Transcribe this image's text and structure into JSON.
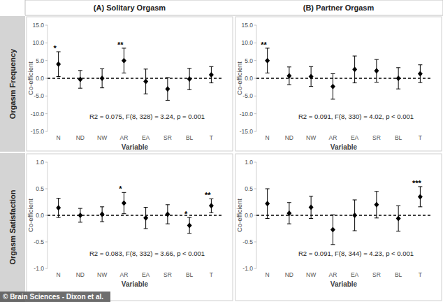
{
  "column_headers": [
    "(A) Solitary Orgasm",
    "(B) Partner Orgasm"
  ],
  "row_labels": [
    "Orgasm Frequency",
    "Orgasm Satisfaction"
  ],
  "credit": "© Brain Sciences - Dixon et al.",
  "chart_data": [
    {
      "type": "scatter",
      "marker": "diamond",
      "color": "#000000",
      "x_label": "Variable",
      "y_label": "Co-efficient",
      "categories": [
        "N",
        "ND",
        "NW",
        "AR",
        "EA",
        "SR",
        "BL",
        "T"
      ],
      "values": [
        4.0,
        -0.3,
        0.0,
        5.0,
        -0.9,
        -3.0,
        -0.2,
        1.0
      ],
      "errors": [
        3.5,
        2.5,
        2.7,
        3.5,
        3.5,
        3.2,
        3.0,
        2.3
      ],
      "significance": [
        "*",
        null,
        null,
        "**",
        null,
        null,
        null,
        null
      ],
      "annotation": "R2 = 0.075, F(8, 328) = 3.24, p = 0.001",
      "reference_line": 0,
      "ylim": [
        -15,
        15
      ],
      "yticks": [
        {
          "value": -15,
          "label": "-15.0"
        },
        {
          "value": -10,
          "label": "-10.0"
        },
        {
          "value": -5,
          "label": "-5.0"
        },
        {
          "value": 0,
          "label": "0.0"
        },
        {
          "value": 5,
          "label": "5.0"
        },
        {
          "value": 10,
          "label": "10.0"
        },
        {
          "value": 15,
          "label": "15.0"
        }
      ]
    },
    {
      "type": "scatter",
      "marker": "diamond",
      "color": "#000000",
      "x_label": "Variable",
      "y_label": "Co-efficient",
      "categories": [
        "N",
        "ND",
        "NW",
        "AR",
        "EA",
        "SR",
        "BL",
        "T"
      ],
      "values": [
        5.0,
        0.7,
        0.5,
        -2.3,
        2.5,
        2.1,
        0.0,
        1.3
      ],
      "errors": [
        3.5,
        2.5,
        2.8,
        3.6,
        3.8,
        3.2,
        3.0,
        2.5
      ],
      "significance": [
        "**",
        null,
        null,
        null,
        null,
        null,
        null,
        null
      ],
      "annotation": "R2 = 0.091, F(8, 330) = 4.02, p < 0.001",
      "reference_line": 0,
      "ylim": [
        -15,
        15
      ],
      "yticks": [
        {
          "value": -15,
          "label": "-15.0"
        },
        {
          "value": -10,
          "label": "-10.0"
        },
        {
          "value": -5,
          "label": "-5.0"
        },
        {
          "value": 0,
          "label": "0.0"
        },
        {
          "value": 5,
          "label": "5.0"
        },
        {
          "value": 10,
          "label": "10.0"
        },
        {
          "value": 15,
          "label": "15.0"
        }
      ]
    },
    {
      "type": "scatter",
      "marker": "diamond",
      "color": "#000000",
      "x_label": "Variable",
      "y_label": "Co-efficient",
      "categories": [
        "N",
        "ND",
        "NW",
        "AR",
        "EA",
        "SR",
        "BL",
        "T"
      ],
      "values": [
        0.14,
        0.0,
        0.02,
        0.23,
        -0.05,
        0.02,
        -0.19,
        0.18
      ],
      "errors": [
        0.18,
        0.13,
        0.14,
        0.2,
        0.2,
        0.18,
        0.15,
        0.13
      ],
      "significance": [
        null,
        null,
        null,
        "*",
        null,
        null,
        "*",
        "**"
      ],
      "annotation": "R2 = 0.083, F(8, 332) = 3.66, p < 0.001",
      "reference_line": 0,
      "ylim": [
        -1,
        1
      ],
      "yticks": [
        {
          "value": -1,
          "label": "-1.0"
        },
        {
          "value": -0.5,
          "label": "-0.5"
        },
        {
          "value": 0,
          "label": "0.0"
        },
        {
          "value": 0.5,
          "label": "0.5"
        },
        {
          "value": 1,
          "label": "1.0"
        }
      ]
    },
    {
      "type": "scatter",
      "marker": "diamond",
      "color": "#000000",
      "x_label": "Variable",
      "y_label": "Co-efficient",
      "categories": [
        "N",
        "ND",
        "NW",
        "AR",
        "EA",
        "SR",
        "BL",
        "T"
      ],
      "values": [
        0.22,
        0.04,
        0.15,
        -0.27,
        0.0,
        0.2,
        -0.06,
        0.35
      ],
      "errors": [
        0.28,
        0.2,
        0.21,
        0.28,
        0.29,
        0.25,
        0.24,
        0.19
      ],
      "significance": [
        null,
        null,
        null,
        null,
        null,
        null,
        null,
        "***"
      ],
      "annotation": "R2 = 0.091, F(8, 344) = 4.23, p < 0.001",
      "reference_line": 0,
      "ylim": [
        -1,
        1
      ],
      "yticks": [
        {
          "value": -1,
          "label": "-1.0"
        },
        {
          "value": -0.5,
          "label": "-0.5"
        },
        {
          "value": 0,
          "label": "0.0"
        },
        {
          "value": 0.5,
          "label": "0.5"
        },
        {
          "value": 1,
          "label": "1.0"
        }
      ]
    }
  ]
}
